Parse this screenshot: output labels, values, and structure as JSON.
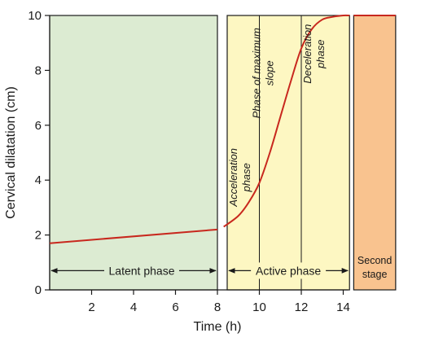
{
  "chart_data": {
    "type": "line",
    "title": "",
    "xlabel": "Time (h)",
    "ylabel": "Cervical dilatation (cm)",
    "xlim": [
      0,
      14
    ],
    "ylim": [
      0,
      10
    ],
    "x_ticks": [
      2,
      4,
      6,
      8,
      10,
      12,
      14
    ],
    "y_ticks": [
      0,
      2,
      4,
      6,
      8,
      10
    ],
    "grid": false,
    "colors": {
      "latent_fill": "#dcebd2",
      "active_fill": "#fdf7c2",
      "second_stage_fill": "#f9c38f",
      "curve": "#c8281e",
      "frame": "#1a1a1a"
    },
    "regions": {
      "latent": {
        "label": "Latent phase",
        "x_start": 0,
        "x_end": 8
      },
      "active": {
        "label": "Active phase",
        "x_start": 8,
        "x_end": 14.3
      },
      "second_stage": {
        "label_line1": "Second",
        "label_line2": "stage",
        "x_start": 14.5,
        "x_end": 16.5
      }
    },
    "subphases": {
      "acceleration": {
        "line1": "Acceleration",
        "line2": "phase"
      },
      "max_slope": {
        "line1": "Phase of maximum",
        "line2": "slope"
      },
      "deceleration": {
        "line1": "Deceleration",
        "line2": "phase"
      },
      "boundaries_x": [
        10,
        12
      ]
    },
    "series": [
      {
        "x": [
          0,
          2,
          4,
          6,
          8,
          8.3,
          9,
          9.5,
          10,
          10.5,
          11,
          11.5,
          12,
          12.5,
          13,
          13.5,
          14,
          14.3
        ],
        "y": [
          1.7,
          1.83,
          1.95,
          2.07,
          2.2,
          2.3,
          2.7,
          3.2,
          3.9,
          5.0,
          6.3,
          7.6,
          8.8,
          9.5,
          9.85,
          9.95,
          10.0,
          10.0
        ]
      },
      {
        "x": [
          14.5,
          16.5
        ],
        "y": [
          10.0,
          10.0
        ]
      }
    ]
  }
}
